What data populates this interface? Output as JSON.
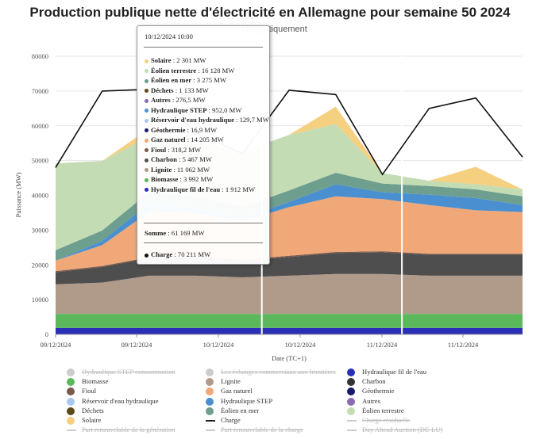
{
  "chart_data": {
    "type": "area",
    "title": "Production publique nette d'électricité en Allemagne pour semaine 50 2024",
    "subtitle": "…énergétiquement",
    "xlabel": "Date (TC+1)",
    "ylabel": "Puissance (MW)",
    "ylim": [
      0,
      80000
    ],
    "y_ticks": [
      "0",
      "10000",
      "20000",
      "30000",
      "40000",
      "50000",
      "60000",
      "70000",
      "80000"
    ],
    "x_tick_labels": [
      "09/12/2024",
      "09/12/2024",
      "10/12/2024",
      "10/12/2024",
      "11/12/2024",
      "11/12/2024"
    ],
    "x_hours": [
      0,
      6,
      12,
      18,
      24,
      30,
      36,
      42,
      48,
      54,
      60
    ],
    "series": [
      {
        "name": "Hydraulique fil de l'eau",
        "color": "#2a2fb8",
        "values": [
          1900,
          1900,
          1900,
          1900,
          1900,
          1900,
          1900,
          1900,
          1900,
          1900,
          1900
        ]
      },
      {
        "name": "Biomasse",
        "color": "#5cb85c",
        "values": [
          4000,
          4000,
          4000,
          4000,
          4000,
          4000,
          4000,
          4000,
          4000,
          4000,
          4000
        ]
      },
      {
        "name": "Lignite",
        "color": "#b09a8a",
        "values": [
          8500,
          9000,
          11000,
          11000,
          10500,
          11000,
          11500,
          11500,
          11000,
          11000,
          11000
        ]
      },
      {
        "name": "Charbon",
        "color": "#4e4e4e",
        "values": [
          3500,
          4500,
          5000,
          5200,
          4800,
          5400,
          6000,
          6200,
          6000,
          6000,
          6000
        ]
      },
      {
        "name": "Fioul",
        "color": "#7a5a4a",
        "values": [
          300,
          300,
          300,
          300,
          300,
          300,
          300,
          300,
          300,
          300,
          300
        ]
      },
      {
        "name": "Gaz naturel",
        "color": "#f0a878",
        "values": [
          3000,
          6000,
          13000,
          12500,
          11000,
          14000,
          16000,
          15000,
          14000,
          12500,
          12000
        ]
      },
      {
        "name": "Hydraulique STEP",
        "color": "#4a90d0",
        "values": [
          0,
          1200,
          2500,
          1500,
          800,
          1500,
          3500,
          2000,
          3000,
          3500,
          2000
        ]
      },
      {
        "name": "Éolien en mer",
        "color": "#6e9e8e",
        "values": [
          3000,
          3000,
          3200,
          3300,
          3300,
          3300,
          3300,
          2500,
          2500,
          2500,
          2500
        ]
      },
      {
        "name": "Éolien terrestre",
        "color": "#c4dcb4",
        "values": [
          25000,
          20000,
          16000,
          16000,
          16000,
          16000,
          14000,
          3000,
          1500,
          1500,
          2000
        ]
      },
      {
        "name": "Solaire",
        "color": "#f5d080",
        "values": [
          0,
          0,
          2300,
          0,
          0,
          0,
          5000,
          0,
          0,
          5000,
          0
        ]
      }
    ],
    "charge": {
      "name": "Charge",
      "color": "#111111",
      "values": [
        48000,
        70000,
        70500,
        58000,
        52000,
        70211,
        69000,
        46000,
        65000,
        68000,
        51000
      ]
    },
    "cursor_hour": 26.5,
    "cursor2_hour": 44.5
  },
  "tooltip": {
    "header": "10/12/2024 10:00",
    "rows": [
      {
        "name": "Solaire",
        "value": "2 301 MW",
        "color": "#f5d080"
      },
      {
        "name": "Éolien terrestre",
        "value": "16 128 MW",
        "color": "#c4dcb4"
      },
      {
        "name": "Éolien en mer",
        "value": "3 275 MW",
        "color": "#6e9e8e"
      },
      {
        "name": "Déchets",
        "value": "1 133 MW",
        "color": "#5a4a1a"
      },
      {
        "name": "Autres",
        "value": "276,5 MW",
        "color": "#8a6ab0"
      },
      {
        "name": "Hydraulique STEP",
        "value": "952,0 MW",
        "color": "#4a90d0"
      },
      {
        "name": "Réservoir d'eau hydraulique",
        "value": "129,7 MW",
        "color": "#a8c8f0"
      },
      {
        "name": "Géothermie",
        "value": "16,9 MW",
        "color": "#1a1a6a"
      },
      {
        "name": "Gaz naturel",
        "value": "14 205 MW",
        "color": "#f0a878"
      },
      {
        "name": "Fioul",
        "value": "318,2 MW",
        "color": "#7a5a4a"
      },
      {
        "name": "Charbon",
        "value": "5 467 MW",
        "color": "#4e4e4e"
      },
      {
        "name": "Lignite",
        "value": "11 062 MW",
        "color": "#b09a8a"
      },
      {
        "name": "Biomasse",
        "value": "3 992 MW",
        "color": "#5cb85c"
      },
      {
        "name": "Hydraulique fil de l'eau",
        "value": "1 912 MW",
        "color": "#2a2fb8"
      }
    ],
    "sum_label": "Somme",
    "sum_value": "61 169 MW",
    "charge_label": "Charge",
    "charge_value": "70 211 MW",
    "charge_color": "#111111"
  },
  "legend": [
    {
      "label": "Hydraulique STEP consommation",
      "color": "#cccccc",
      "kind": "dot",
      "active": false
    },
    {
      "label": "Les échanges commerciaux aux frontières",
      "color": "#cccccc",
      "kind": "dot",
      "active": false
    },
    {
      "label": "Hydraulique fil de l'eau",
      "color": "#2a2fb8",
      "kind": "dot",
      "active": true
    },
    {
      "label": "Biomasse",
      "color": "#5cb85c",
      "kind": "dot",
      "active": true
    },
    {
      "label": "Lignite",
      "color": "#b09a8a",
      "kind": "dot",
      "active": true
    },
    {
      "label": "Charbon",
      "color": "#333333",
      "kind": "dot",
      "active": true
    },
    {
      "label": "Fioul",
      "color": "#7a5a4a",
      "kind": "dot",
      "active": true
    },
    {
      "label": "Gaz naturel",
      "color": "#f0a878",
      "kind": "dot",
      "active": true
    },
    {
      "label": "Géothermie",
      "color": "#1a1a6a",
      "kind": "dot",
      "active": true
    },
    {
      "label": "Réservoir d'eau hydraulique",
      "color": "#a8c8f0",
      "kind": "dot",
      "active": true
    },
    {
      "label": "Hydraulique STEP",
      "color": "#4a90d0",
      "kind": "dot",
      "active": true
    },
    {
      "label": "Autres",
      "color": "#8a6ab0",
      "kind": "dot",
      "active": true
    },
    {
      "label": "Déchets",
      "color": "#5a4a1a",
      "kind": "dot",
      "active": true
    },
    {
      "label": "Éolien en mer",
      "color": "#6e9e8e",
      "kind": "dot",
      "active": true
    },
    {
      "label": "Éolien terrestre",
      "color": "#c4dcb4",
      "kind": "dot",
      "active": true
    },
    {
      "label": "Solaire",
      "color": "#f5d080",
      "kind": "dot",
      "active": true
    },
    {
      "label": "Charge",
      "color": "#222222",
      "kind": "line",
      "active": true
    },
    {
      "label": "Charge résiduelle",
      "color": "#cccccc",
      "kind": "line",
      "active": false
    },
    {
      "label": "Part renouvelable de la génération",
      "color": "#cccccc",
      "kind": "line",
      "active": false
    },
    {
      "label": "Part renouvelable de la charge",
      "color": "#cccccc",
      "kind": "line",
      "active": false
    },
    {
      "label": "Day Ahead Auction (DE-LU)",
      "color": "#cccccc",
      "kind": "line",
      "active": false
    }
  ]
}
